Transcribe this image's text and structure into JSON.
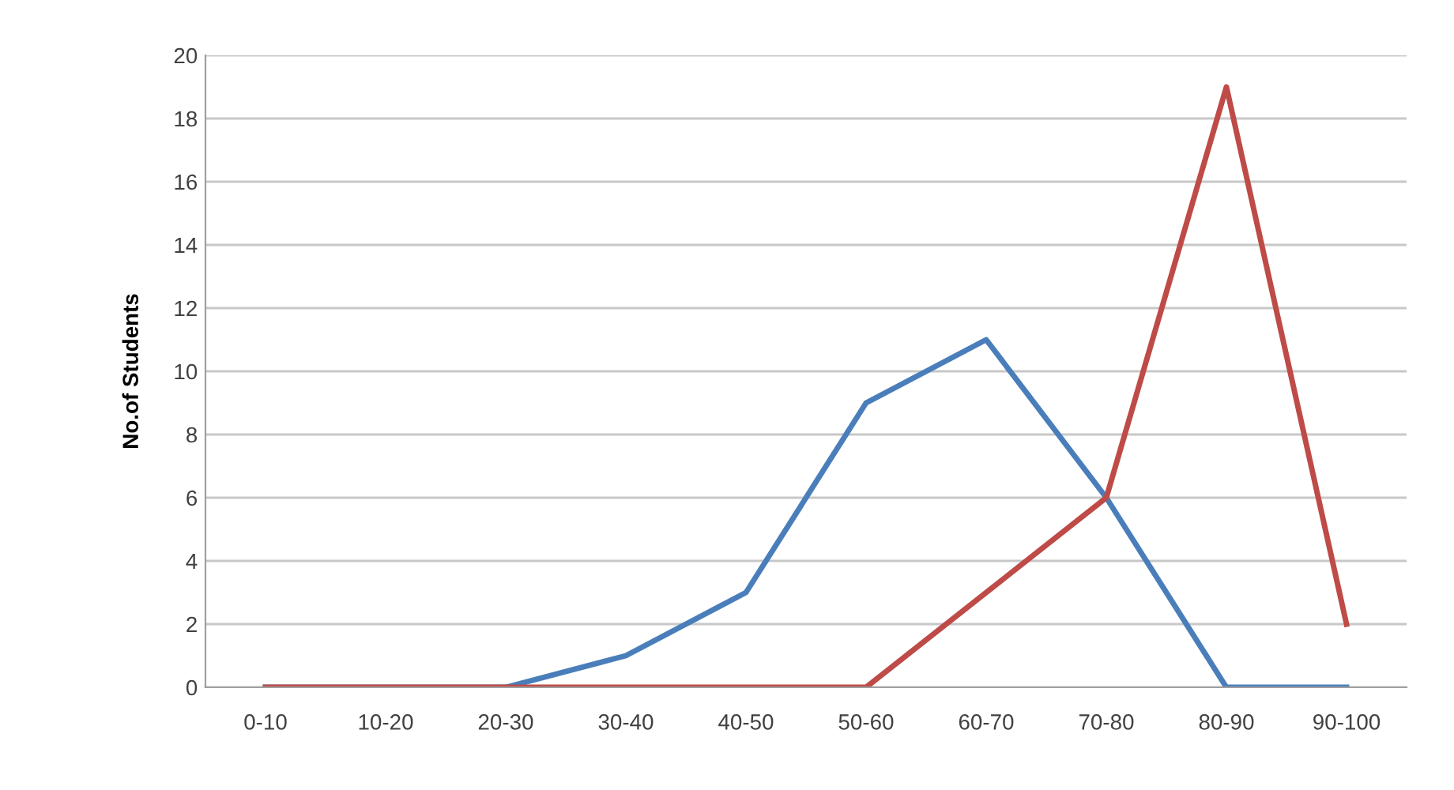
{
  "chart_data": {
    "type": "line",
    "ylabel": "No.of Students",
    "categories": [
      "0-10",
      "10-20",
      "20-30",
      "30-40",
      "40-50",
      "50-60",
      "60-70",
      "70-80",
      "80-90",
      "90-100"
    ],
    "series": [
      {
        "color": "#4a7ebb",
        "values": [
          0,
          0,
          0,
          1,
          3,
          9,
          11,
          6,
          0,
          0
        ]
      },
      {
        "color": "#be4b48",
        "values": [
          0,
          0,
          0,
          0,
          0,
          0,
          3,
          6,
          19,
          2
        ]
      }
    ],
    "ylim": [
      0,
      20
    ],
    "yticks": [
      0,
      2,
      4,
      6,
      8,
      10,
      12,
      14,
      16,
      18,
      20
    ],
    "grid": "y",
    "marker": "none",
    "line_style": "solid"
  }
}
